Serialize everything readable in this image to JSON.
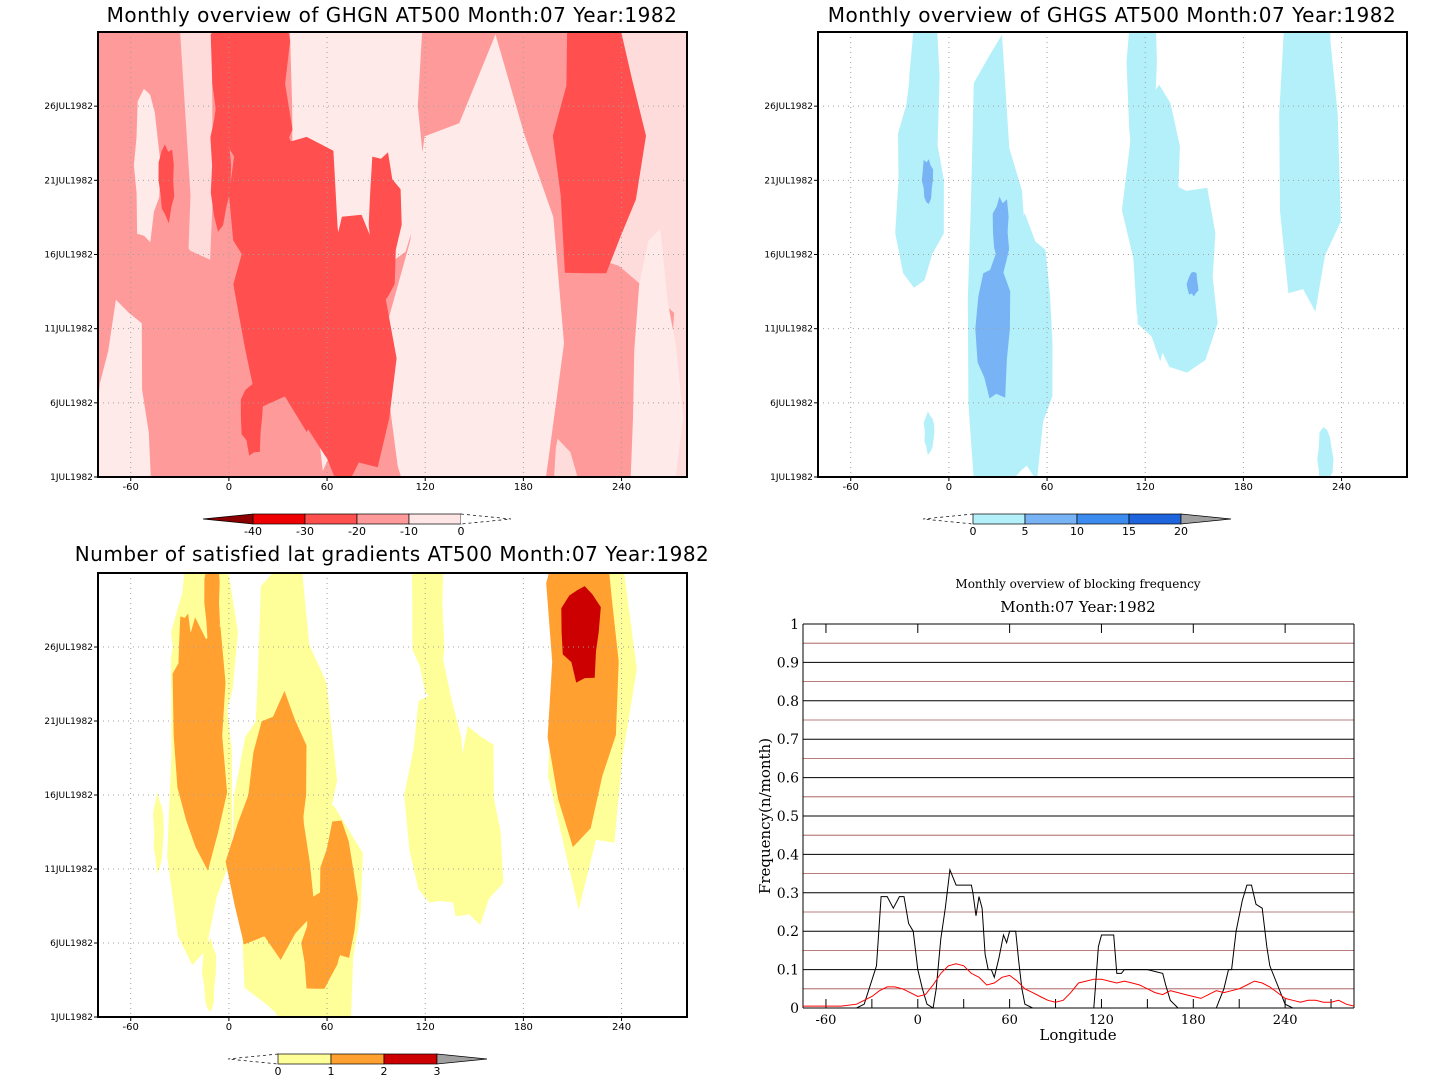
{
  "chart_data": [
    {
      "type": "heatmap",
      "title": "Monthly overview of GHGN AT500 Month:07 Year:1982",
      "x_ticks": [
        "-60",
        "0",
        "60",
        "120",
        "180",
        "240"
      ],
      "x_tick_values": [
        -60,
        0,
        60,
        120,
        180,
        240
      ],
      "y_ticks": [
        "1JUL1982",
        "6JUL1982",
        "11JUL1982",
        "16JUL1982",
        "21JUL1982",
        "26JUL1982"
      ],
      "y_tick_values": [
        1,
        6,
        11,
        16,
        21,
        26
      ],
      "xlim": [
        -80,
        280
      ],
      "ylim": [
        1,
        31
      ],
      "background_color": "#ffdcdc",
      "colorbar": {
        "labels": [
          "-40",
          "-30",
          "-20",
          "-10",
          "0"
        ],
        "colors": [
          "#8b0000",
          "#ee0000",
          "#ff5050",
          "#ff9a9a",
          "#ffe6e6"
        ],
        "end_arrows": [
          "left-filled",
          "right-dashed"
        ]
      },
      "regions": [
        {
          "level": "-10",
          "color": "#ff9a9a",
          "blobs": [
            [
              -70,
              20,
              50,
              55
            ],
            [
              40,
              20,
              70,
              50
            ],
            [
              150,
              18,
              80,
              50
            ],
            [
              -30,
              8,
              40,
              12
            ],
            [
              230,
              8,
              50,
              10
            ],
            [
              100,
              3,
              40,
              8
            ]
          ]
        },
        {
          "level": "0",
          "color": "#ffeaea",
          "blobs": [
            [
              80,
              26,
              50,
              14
            ],
            [
              150,
              10,
              60,
              22
            ],
            [
              -65,
              4,
              20,
              10
            ],
            [
              260,
              5,
              18,
              14
            ],
            [
              -50,
              22,
              10,
              6
            ],
            [
              60,
              9,
              12,
              8
            ],
            [
              170,
              15,
              14,
              6
            ]
          ]
        },
        {
          "level": "-20",
          "color": "#ff4f4f",
          "blobs": [
            [
              15,
              27.5,
              30,
              8
            ],
            [
              20,
              20,
              22,
              8
            ],
            [
              40,
              14,
              40,
              12
            ],
            [
              75,
              9,
              30,
              11
            ],
            [
              225,
              24,
              32,
              12
            ],
            [
              -5,
              22,
              8,
              5
            ],
            [
              95,
              18,
              12,
              6
            ],
            [
              -38,
              21,
              6,
              3
            ],
            [
              14,
              5,
              8,
              3
            ],
            [
              46,
              12,
              8,
              3
            ]
          ]
        }
      ]
    },
    {
      "type": "heatmap",
      "title": "Monthly overview of GHGS AT500 Month:07 Year:1982",
      "x_ticks": [
        "-60",
        "0",
        "60",
        "120",
        "180",
        "240"
      ],
      "x_tick_values": [
        -60,
        0,
        60,
        120,
        180,
        240
      ],
      "y_ticks": [
        "1JUL1982",
        "6JUL1982",
        "11JUL1982",
        "16JUL1982",
        "21JUL1982",
        "26JUL1982"
      ],
      "y_tick_values": [
        1,
        6,
        11,
        16,
        21,
        26
      ],
      "xlim": [
        -80,
        280
      ],
      "ylim": [
        1,
        31
      ],
      "background_color": "#ffffff",
      "colorbar": {
        "labels": [
          "0",
          "5",
          "10",
          "15",
          "20"
        ],
        "colors": [
          "#b4f0fa",
          "#78b4f5",
          "#3c8cf0",
          "#1e64dc"
        ],
        "end_arrows": [
          "left-dashed",
          "right-filled-gray"
        ]
      },
      "regions": [
        {
          "level": "0",
          "color": "#b4f0fa",
          "blobs": [
            [
              -15,
              28,
              10,
              14
            ],
            [
              -18,
              21,
              18,
              9
            ],
            [
              28,
              13,
              22,
              20
            ],
            [
              50,
              10,
              18,
              10
            ],
            [
              42,
              5.5,
              14,
              5
            ],
            [
              125,
              19,
              20,
              11
            ],
            [
              140,
              14.5,
              30,
              8
            ],
            [
              118,
              29,
              10,
              12
            ],
            [
              220,
              25.5,
              22,
              17
            ],
            [
              218,
              18.5,
              8,
              2
            ],
            [
              230,
              2.2,
              6,
              2.5
            ],
            [
              -12,
              4,
              4,
              1.6
            ]
          ]
        },
        {
          "level": "5",
          "color": "#78b4f5",
          "blobs": [
            [
              -13,
              21,
              4,
              1.8
            ],
            [
              32,
              17.5,
              6,
              3
            ],
            [
              27,
              11,
              12,
              6
            ],
            [
              149,
              14,
              4,
              1
            ]
          ]
        }
      ]
    },
    {
      "type": "heatmap",
      "title": "Number of satisfied lat gradients AT500 Month:07 Year:1982",
      "x_ticks": [
        "-60",
        "0",
        "60",
        "120",
        "180",
        "240"
      ],
      "x_tick_values": [
        -60,
        0,
        60,
        120,
        180,
        240
      ],
      "y_ticks": [
        "1JUL1982",
        "6JUL1982",
        "11JUL1982",
        "16JUL1982",
        "21JUL1982",
        "26JUL1982"
      ],
      "y_tick_values": [
        1,
        6,
        11,
        16,
        21,
        26
      ],
      "xlim": [
        -80,
        280
      ],
      "ylim": [
        1,
        31
      ],
      "background_color": "#ffffff",
      "colorbar": {
        "labels": [
          "0",
          "1",
          "2",
          "3"
        ],
        "colors": [
          "#ffff99",
          "#ffa030",
          "#cc0000"
        ],
        "end_arrows": [
          "left-dashed",
          "right-filled-gray"
        ]
      },
      "regions": [
        {
          "level": "0",
          "color": "#ffff99",
          "blobs": [
            [
              -15,
              27,
              22,
              10
            ],
            [
              -18,
              19,
              24,
              18
            ],
            [
              37,
              17,
              30,
              18
            ],
            [
              30,
              11.5,
              36,
              12
            ],
            [
              60,
              8,
              26,
              10
            ],
            [
              47,
              5,
              28,
              6
            ],
            [
              122,
              29,
              12,
              8
            ],
            [
              126,
              16,
              20,
              10
            ],
            [
              150,
              13.5,
              20,
              8
            ],
            [
              220,
              24.5,
              30,
              18
            ],
            [
              222,
              18,
              12,
              4
            ],
            [
              -43,
              13.5,
              4,
              3
            ],
            [
              -12,
              4,
              5,
              3
            ]
          ]
        },
        {
          "level": "1",
          "color": "#ffa030",
          "blobs": [
            [
              -17,
              20,
              20,
              10
            ],
            [
              30,
              16,
              20,
              8
            ],
            [
              26,
              11.5,
              30,
              8
            ],
            [
              66,
              9,
              14,
              6
            ],
            [
              56,
              6,
              14,
              4
            ],
            [
              216,
              25,
              28,
              14
            ],
            [
              -26,
              25,
              6,
              4
            ],
            [
              -10,
              29,
              6,
              4
            ]
          ]
        },
        {
          "level": "2",
          "color": "#cc0000",
          "blobs": [
            [
              215,
              27,
              14,
              4
            ]
          ]
        }
      ]
    },
    {
      "type": "line",
      "title": "Monthly overview of blocking frequency",
      "subtitle": "Month:07 Year:1982",
      "xlabel": "Longitude",
      "ylabel": "Frequency(n/month)",
      "x_ticks": [
        "-60",
        "0",
        "60",
        "120",
        "180",
        "240"
      ],
      "x_tick_values": [
        -60,
        0,
        60,
        120,
        180,
        240
      ],
      "y_ticks": [
        "0",
        "0.1",
        "0.2",
        "0.3",
        "0.4",
        "0.5",
        "0.6",
        "0.7",
        "0.8",
        "0.9",
        "1"
      ],
      "y_tick_values": [
        0,
        0.1,
        0.2,
        0.3,
        0.4,
        0.5,
        0.6,
        0.7,
        0.8,
        0.9,
        1
      ],
      "xlim": [
        -75,
        285
      ],
      "ylim": [
        0,
        1
      ],
      "grid": true,
      "series": [
        {
          "color": "#000000",
          "x": [
            -75,
            -45,
            -40,
            -35,
            -27,
            -24,
            -20,
            -16,
            -12,
            -9,
            -6,
            -3,
            0,
            3,
            6,
            10,
            12,
            15,
            18,
            21,
            23,
            25,
            28,
            31,
            35,
            36,
            38,
            40,
            42,
            44,
            46,
            48,
            50,
            53,
            56,
            58,
            60,
            62,
            64,
            66,
            68,
            70,
            75,
            80,
            85,
            115,
            116,
            118,
            120,
            125,
            128,
            130,
            133,
            135,
            150,
            160,
            162,
            165,
            170,
            195,
            197,
            200,
            203,
            205,
            208,
            212,
            215,
            218,
            221,
            225,
            228,
            230,
            235,
            240,
            245,
            285
          ],
          "y": [
            0,
            0,
            0,
            0.01,
            0.11,
            0.29,
            0.29,
            0.26,
            0.29,
            0.29,
            0.22,
            0.2,
            0.1,
            0.05,
            0.01,
            0,
            0.05,
            0.18,
            0.26,
            0.36,
            0.34,
            0.32,
            0.32,
            0.32,
            0.32,
            0.3,
            0.24,
            0.29,
            0.26,
            0.14,
            0.1,
            0.1,
            0.08,
            0.13,
            0.19,
            0.17,
            0.2,
            0.2,
            0.2,
            0.12,
            0.05,
            0.01,
            0,
            0,
            0,
            0,
            0.05,
            0.16,
            0.19,
            0.19,
            0.19,
            0.09,
            0.09,
            0.1,
            0.1,
            0.09,
            0.06,
            0.02,
            0,
            0,
            0.02,
            0.05,
            0.1,
            0.1,
            0.2,
            0.28,
            0.32,
            0.32,
            0.27,
            0.26,
            0.16,
            0.11,
            0.06,
            0.01,
            0,
            0
          ]
        },
        {
          "color": "#ff0000",
          "x": [
            -75,
            -50,
            -40,
            -35,
            -30,
            -25,
            -20,
            -15,
            -10,
            -5,
            0,
            5,
            10,
            15,
            20,
            25,
            30,
            35,
            40,
            45,
            50,
            55,
            60,
            65,
            70,
            75,
            80,
            85,
            90,
            95,
            100,
            105,
            110,
            115,
            120,
            125,
            130,
            135,
            140,
            145,
            150,
            155,
            160,
            165,
            170,
            175,
            180,
            185,
            190,
            195,
            200,
            205,
            210,
            215,
            220,
            225,
            230,
            235,
            240,
            245,
            250,
            255,
            260,
            265,
            270,
            275,
            280,
            285
          ],
          "y": [
            0.005,
            0.005,
            0.01,
            0.02,
            0.03,
            0.045,
            0.055,
            0.055,
            0.05,
            0.04,
            0.03,
            0.035,
            0.06,
            0.09,
            0.11,
            0.115,
            0.11,
            0.09,
            0.08,
            0.06,
            0.065,
            0.08,
            0.085,
            0.07,
            0.05,
            0.04,
            0.03,
            0.02,
            0.015,
            0.02,
            0.04,
            0.065,
            0.07,
            0.075,
            0.075,
            0.07,
            0.065,
            0.07,
            0.065,
            0.06,
            0.05,
            0.04,
            0.035,
            0.045,
            0.04,
            0.035,
            0.03,
            0.025,
            0.035,
            0.045,
            0.04,
            0.045,
            0.05,
            0.06,
            0.07,
            0.065,
            0.055,
            0.04,
            0.025,
            0.02,
            0.015,
            0.02,
            0.02,
            0.015,
            0.015,
            0.02,
            0.01,
            0.005
          ]
        }
      ]
    }
  ]
}
